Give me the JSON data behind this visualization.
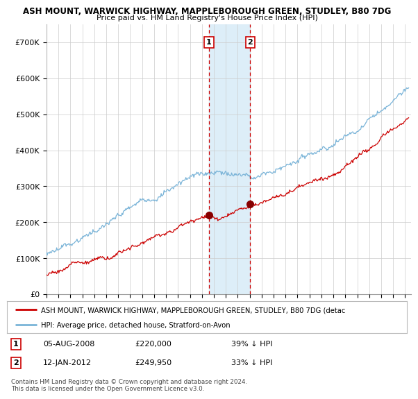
{
  "title1": "ASH MOUNT, WARWICK HIGHWAY, MAPPLEBOROUGH GREEN, STUDLEY, B80 7DG",
  "title2": "Price paid vs. HM Land Registry's House Price Index (HPI)",
  "ylabel_ticks": [
    "£0",
    "£100K",
    "£200K",
    "£300K",
    "£400K",
    "£500K",
    "£600K",
    "£700K"
  ],
  "ylim": [
    0,
    750000
  ],
  "xlim_start": 1995.0,
  "xlim_end": 2025.5,
  "sale1_date": 2008.59,
  "sale1_value": 220000,
  "sale1_label": "1",
  "sale2_date": 2012.04,
  "sale2_value": 249950,
  "sale2_label": "2",
  "hpi_color": "#7ab4d8",
  "price_color": "#cc0000",
  "shade_color": "#ddeef8",
  "marker_color": "#880000",
  "vline_color": "#cc0000",
  "legend_line1": "ASH MOUNT, WARWICK HIGHWAY, MAPPLEBOROUGH GREEN, STUDLEY, B80 7DG (detac",
  "legend_line2": "HPI: Average price, detached house, Stratford-on-Avon",
  "table_row1_num": "1",
  "table_row1_date": "05-AUG-2008",
  "table_row1_price": "£220,000",
  "table_row1_hpi": "39% ↓ HPI",
  "table_row2_num": "2",
  "table_row2_date": "12-JAN-2012",
  "table_row2_price": "£249,950",
  "table_row2_hpi": "33% ↓ HPI",
  "footnote": "Contains HM Land Registry data © Crown copyright and database right 2024.\nThis data is licensed under the Open Government Licence v3.0.",
  "background_color": "#ffffff",
  "grid_color": "#cccccc"
}
